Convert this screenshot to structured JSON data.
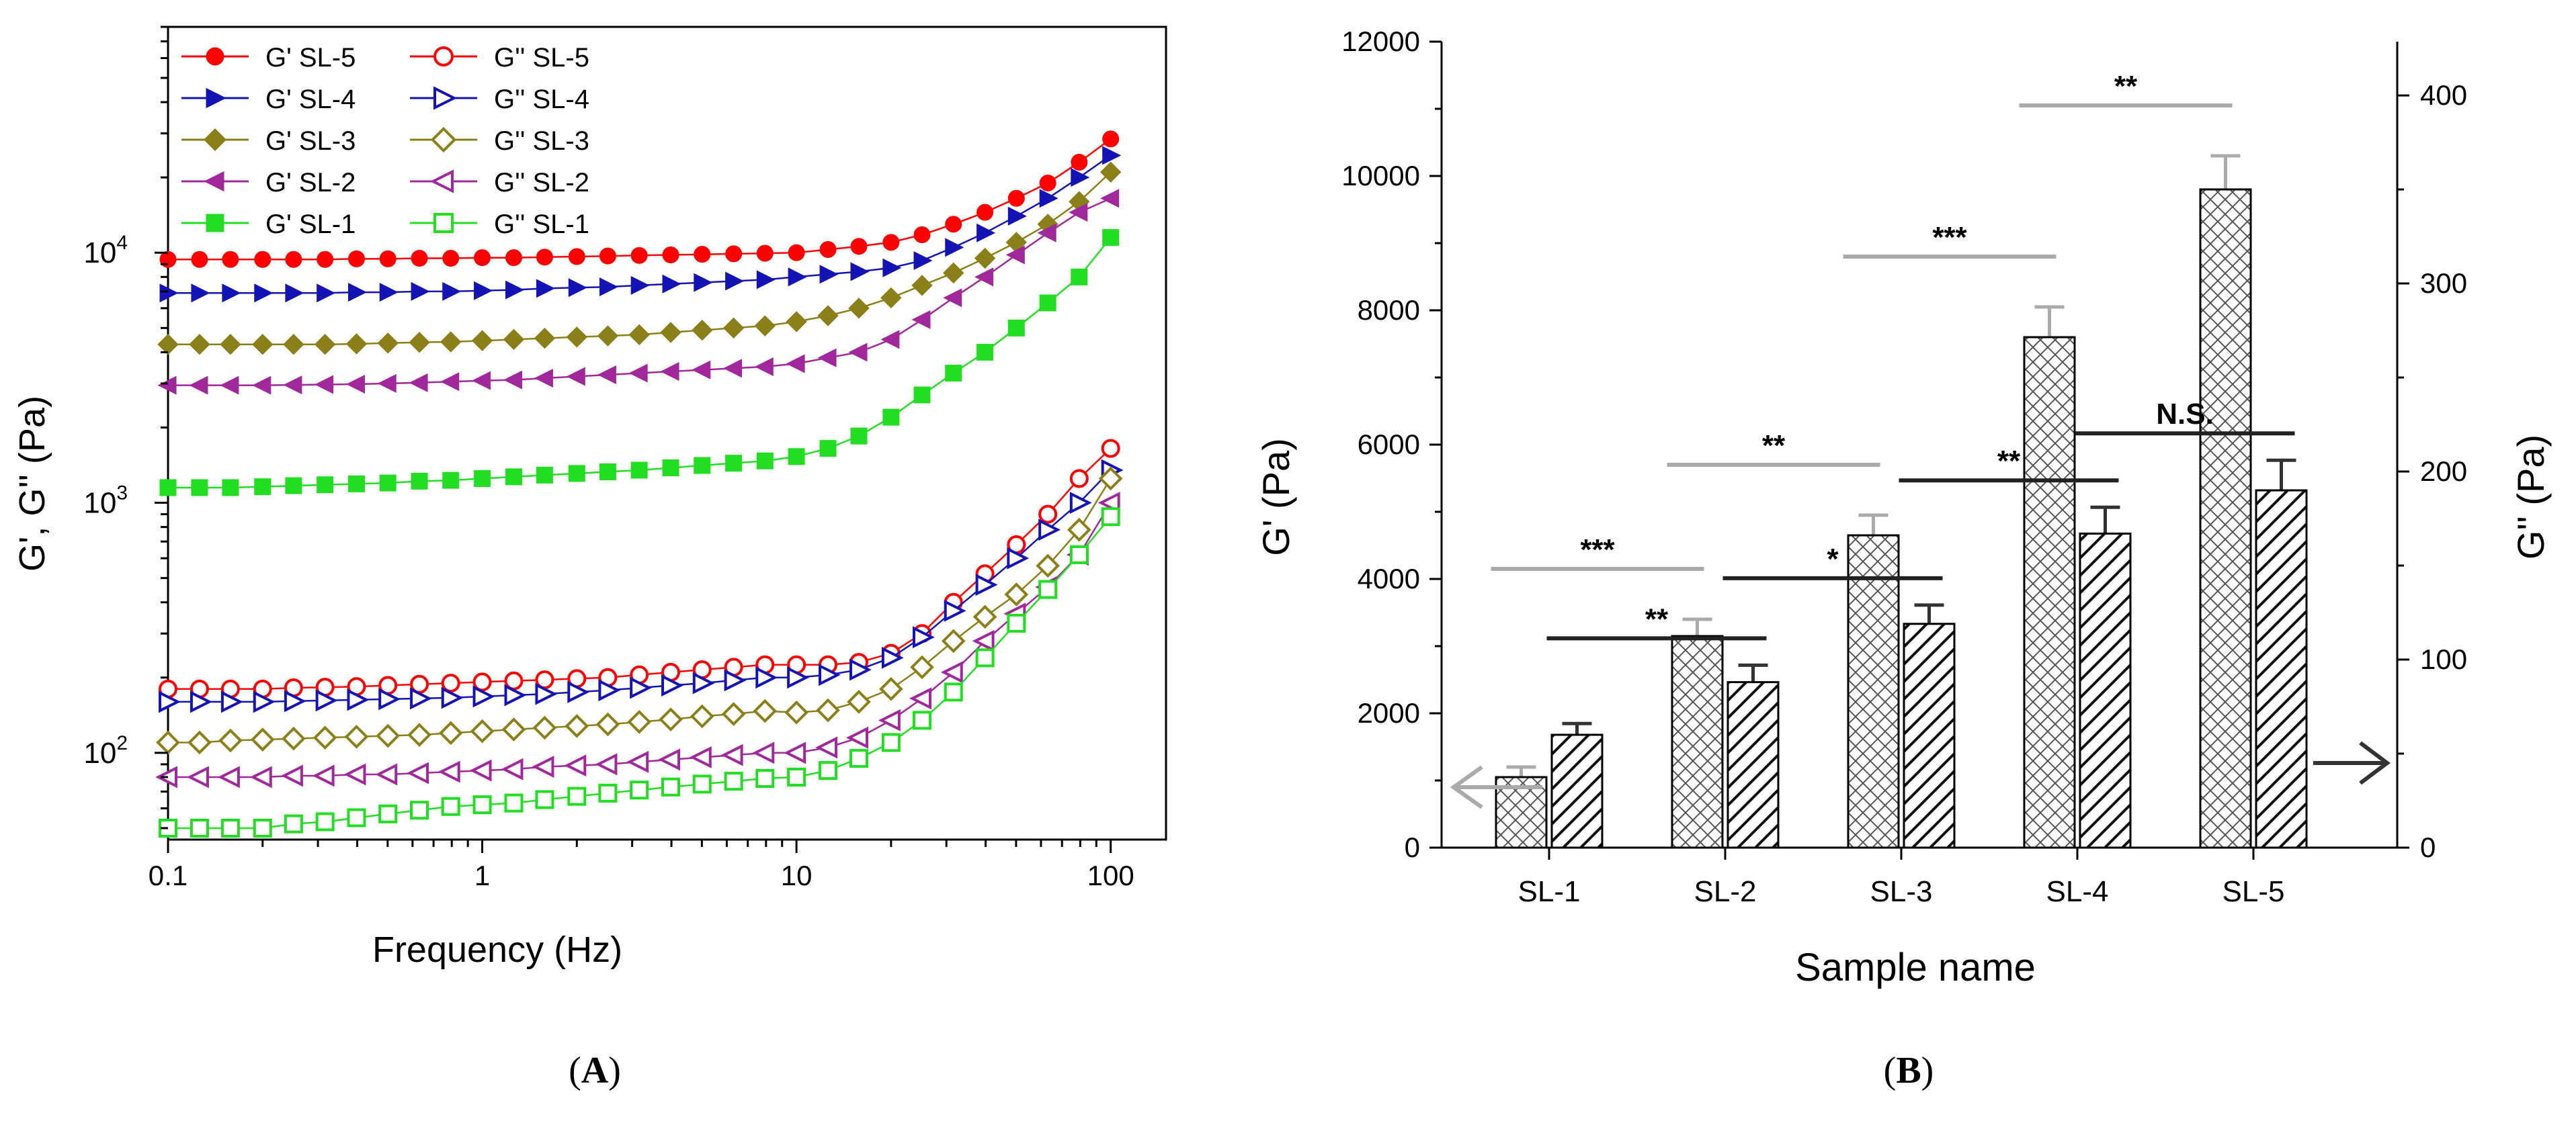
{
  "chart_data": [
    {
      "type": "line",
      "panel_label": "A",
      "xscale": "log",
      "yscale": "log",
      "xlabel": "Frequency (Hz)",
      "ylabel": "G', G'' (Pa)",
      "xlim": [
        0.1,
        150
      ],
      "ylim": [
        45,
        80000
      ],
      "x_ticks": [
        {
          "value": 0.1,
          "label": "0.1"
        },
        {
          "value": 1,
          "label": "1"
        },
        {
          "value": 10,
          "label": "10"
        },
        {
          "value": 100,
          "label": "100"
        }
      ],
      "y_ticks": [
        {
          "value": 100,
          "base": "10",
          "exp": "2"
        },
        {
          "value": 1000,
          "base": "10",
          "exp": "3"
        },
        {
          "value": 10000,
          "base": "10",
          "exp": "4"
        }
      ],
      "legend_position": "top-left",
      "legend_columns": 2,
      "x": [
        0.1,
        0.126,
        0.158,
        0.2,
        0.251,
        0.316,
        0.398,
        0.501,
        0.631,
        0.794,
        1,
        1.26,
        1.58,
        2,
        2.51,
        3.16,
        3.98,
        5.01,
        6.31,
        7.94,
        10,
        12.6,
        15.8,
        20,
        25.1,
        31.6,
        39.8,
        50.1,
        63.1,
        79.4,
        100
      ],
      "series": [
        {
          "name": "G' SL-5",
          "color": "#ff0000",
          "marker": "circle",
          "filled": true,
          "values": [
            9400,
            9400,
            9400,
            9400,
            9400,
            9400,
            9450,
            9450,
            9500,
            9500,
            9550,
            9550,
            9600,
            9650,
            9700,
            9750,
            9800,
            9850,
            9900,
            9950,
            10000,
            10300,
            10600,
            11000,
            11800,
            13000,
            14500,
            16500,
            19000,
            23000,
            28500
          ]
        },
        {
          "name": "G'' SL-5",
          "color": "#ff0000",
          "marker": "circle",
          "filled": false,
          "values": [
            180,
            180,
            180,
            180,
            182,
            183,
            184,
            186,
            188,
            190,
            192,
            194,
            196,
            198,
            200,
            205,
            210,
            215,
            220,
            225,
            225,
            225,
            230,
            250,
            300,
            400,
            520,
            680,
            900,
            1250,
            1650
          ]
        },
        {
          "name": "G' SL-4",
          "color": "#1414b4",
          "marker": "triangle-right",
          "filled": true,
          "values": [
            6900,
            6900,
            6900,
            6900,
            6900,
            6900,
            6950,
            6950,
            7000,
            7000,
            7050,
            7100,
            7200,
            7250,
            7300,
            7400,
            7500,
            7600,
            7700,
            7800,
            8000,
            8200,
            8400,
            8700,
            9300,
            10500,
            12000,
            14000,
            16500,
            20000,
            24500
          ]
        },
        {
          "name": "G'' SL-4",
          "color": "#1414b4",
          "marker": "triangle-right",
          "filled": false,
          "values": [
            160,
            160,
            160,
            160,
            161,
            162,
            163,
            164,
            165,
            166,
            168,
            170,
            172,
            175,
            178,
            182,
            186,
            190,
            195,
            200,
            200,
            205,
            215,
            240,
            290,
            370,
            470,
            600,
            780,
            1000,
            1350
          ]
        },
        {
          "name": "G' SL-3",
          "color": "#8b7f1a",
          "marker": "diamond",
          "filled": true,
          "values": [
            4300,
            4300,
            4300,
            4300,
            4300,
            4300,
            4320,
            4350,
            4380,
            4400,
            4450,
            4500,
            4550,
            4600,
            4650,
            4700,
            4800,
            4900,
            5000,
            5100,
            5300,
            5600,
            6000,
            6600,
            7400,
            8300,
            9500,
            11000,
            13000,
            16000,
            21000
          ]
        },
        {
          "name": "G'' SL-3",
          "color": "#8b7f1a",
          "marker": "diamond",
          "filled": false,
          "values": [
            110,
            110,
            112,
            113,
            114,
            115,
            116,
            117,
            118,
            120,
            122,
            124,
            126,
            128,
            130,
            133,
            136,
            140,
            143,
            147,
            145,
            148,
            160,
            180,
            220,
            280,
            350,
            430,
            560,
            780,
            1250
          ]
        },
        {
          "name": "G' SL-2",
          "color": "#a0289b",
          "marker": "triangle-left",
          "filled": true,
          "values": [
            2950,
            2950,
            2950,
            2950,
            2960,
            2970,
            2980,
            3000,
            3020,
            3050,
            3080,
            3100,
            3150,
            3200,
            3250,
            3300,
            3350,
            3400,
            3450,
            3500,
            3600,
            3800,
            4000,
            4500,
            5400,
            6600,
            8000,
            9800,
            12000,
            14500,
            16500
          ]
        },
        {
          "name": "G'' SL-2",
          "color": "#a0289b",
          "marker": "triangle-left",
          "filled": false,
          "values": [
            80,
            80,
            80,
            80,
            81,
            81,
            82,
            82,
            83,
            84,
            85,
            86,
            88,
            89,
            90,
            92,
            94,
            96,
            98,
            100,
            100,
            105,
            115,
            135,
            165,
            210,
            280,
            360,
            460,
            620,
            1000
          ]
        },
        {
          "name": "G' SL-1",
          "color": "#22dd22",
          "marker": "square",
          "filled": true,
          "values": [
            1150,
            1150,
            1150,
            1160,
            1170,
            1180,
            1190,
            1200,
            1220,
            1230,
            1250,
            1270,
            1290,
            1310,
            1330,
            1350,
            1380,
            1410,
            1440,
            1470,
            1530,
            1650,
            1850,
            2200,
            2700,
            3300,
            4000,
            5000,
            6300,
            8000,
            11500
          ]
        },
        {
          "name": "G'' SL-1",
          "color": "#22dd22",
          "marker": "square",
          "filled": false,
          "values": [
            50,
            50,
            50,
            50,
            52,
            53,
            55,
            57,
            59,
            61,
            62,
            63,
            65,
            67,
            69,
            71,
            73,
            75,
            77,
            79,
            80,
            85,
            95,
            110,
            135,
            175,
            240,
            330,
            450,
            620,
            880
          ]
        }
      ]
    },
    {
      "type": "bar",
      "panel_label": "B",
      "xlabel": "Sample name",
      "ylabel": "G' (Pa)",
      "ylabel_right": "G'' (Pa)",
      "categories": [
        "SL-1",
        "SL-2",
        "SL-3",
        "SL-4",
        "SL-5"
      ],
      "ylim": [
        0,
        12000
      ],
      "ylim_right": [
        0,
        428.6
      ],
      "y_ticks": [
        "0",
        "2000",
        "4000",
        "6000",
        "8000",
        "10000",
        "12000"
      ],
      "y_ticks_right": [
        "0",
        "100",
        "200",
        "300",
        "400"
      ],
      "series": [
        {
          "name": "G'",
          "axis": "left",
          "pattern": "crosshatch",
          "values": [
            1050,
            3150,
            4650,
            7600,
            9800
          ],
          "errors": [
            150,
            250,
            300,
            450,
            500
          ]
        },
        {
          "name": "G''",
          "axis": "right",
          "pattern": "diagonal",
          "values": [
            60,
            88,
            119,
            167,
            190
          ],
          "errors": [
            6,
            9,
            10,
            14,
            16
          ]
        }
      ],
      "significance": [
        {
          "label": "***",
          "group": "G'",
          "from": "SL-1",
          "to": "SL-2"
        },
        {
          "label": "**",
          "group": "G'",
          "from": "SL-2",
          "to": "SL-3"
        },
        {
          "label": "***",
          "group": "G'",
          "from": "SL-3",
          "to": "SL-4"
        },
        {
          "label": "**",
          "group": "G'",
          "from": "SL-4",
          "to": "SL-5"
        },
        {
          "label": "**",
          "group": "G''",
          "from": "SL-1",
          "to": "SL-2"
        },
        {
          "label": "*",
          "group": "G''",
          "from": "SL-2",
          "to": "SL-3"
        },
        {
          "label": "**",
          "group": "G''",
          "from": "SL-3",
          "to": "SL-4"
        },
        {
          "label": "N.S.",
          "group": "G''",
          "from": "SL-4",
          "to": "SL-5"
        }
      ],
      "colors": {
        "G'_annotation": "#aaaaaa",
        "G''_annotation": "#222222",
        "left_arrow": "#aaaaaa",
        "right_arrow": "#333333"
      }
    }
  ]
}
